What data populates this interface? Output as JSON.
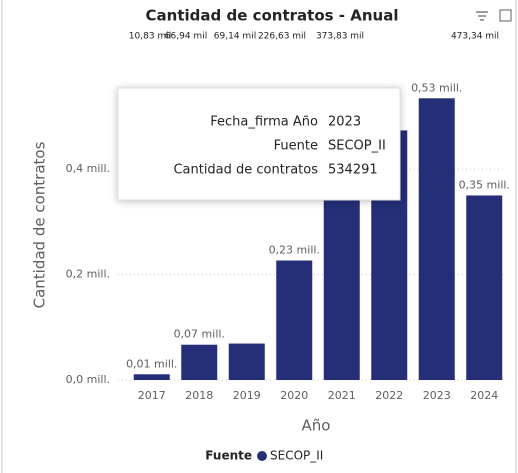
{
  "chart_data": {
    "type": "bar",
    "title": "Cantidad de contratos - Anual",
    "annotations": [
      "10,83 mil",
      "66,94 mil",
      "69,14 mil",
      "226,63 mil",
      "373,83 mil",
      "473,34 mil"
    ],
    "x_label": "Año",
    "y_label": "Cantidad de contratos",
    "categories": [
      "2017",
      "2018",
      "2019",
      "2020",
      "2021",
      "2022",
      "2023",
      "2024"
    ],
    "series": [
      {
        "name": "SECOP_II",
        "color": "#252f78",
        "values": [
          10830,
          66940,
          69140,
          226630,
          373830,
          473340,
          534291,
          350000
        ],
        "value_labels": [
          "0,01 mill.",
          "0,07 mill.",
          null,
          "0,23 mill.",
          null,
          null,
          "0,53 mill.",
          "0,35 mill."
        ]
      }
    ],
    "legend_title": "Fuente",
    "ylim": [
      0,
      550000
    ],
    "yticks": [
      {
        "value": 0,
        "label": "0,0 mill."
      },
      {
        "value": 200000,
        "label": "0,2 mill."
      },
      {
        "value": 400000,
        "label": "0,4 mill."
      }
    ],
    "grid": true,
    "tooltip": [
      {
        "label": "Fecha_firma Año",
        "value": "2023"
      },
      {
        "label": "Fuente",
        "value": "SECOP_II"
      },
      {
        "label": "Cantidad de contratos",
        "value": "534291"
      }
    ]
  }
}
